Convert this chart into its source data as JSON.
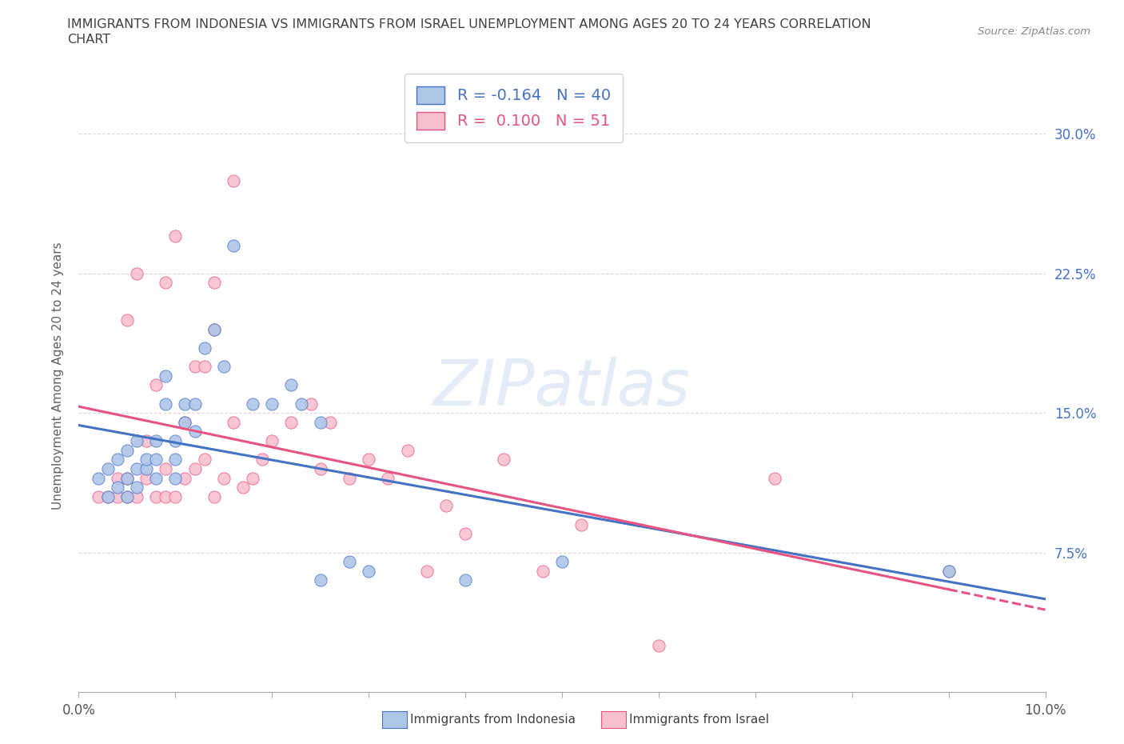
{
  "title_line1": "IMMIGRANTS FROM INDONESIA VS IMMIGRANTS FROM ISRAEL UNEMPLOYMENT AMONG AGES 20 TO 24 YEARS CORRELATION",
  "title_line2": "CHART",
  "source_text": "Source: ZipAtlas.com",
  "ylabel": "Unemployment Among Ages 20 to 24 years",
  "xlim": [
    0.0,
    0.1
  ],
  "ylim": [
    0.0,
    0.34
  ],
  "xtick_labels": [
    "0.0%",
    "",
    "",
    "",
    "",
    "",
    "",
    "",
    "",
    "",
    "10.0%"
  ],
  "xtick_vals": [
    0.0,
    0.01,
    0.02,
    0.03,
    0.04,
    0.05,
    0.06,
    0.07,
    0.08,
    0.09,
    0.1
  ],
  "ytick_labels": [
    "7.5%",
    "15.0%",
    "22.5%",
    "30.0%"
  ],
  "ytick_vals": [
    0.075,
    0.15,
    0.225,
    0.3
  ],
  "legend_labels": [
    "Immigrants from Indonesia",
    "Immigrants from Israel"
  ],
  "indonesia_color": "#aec6e8",
  "israel_color": "#f9c0d0",
  "indonesia_edge_color": "#4472c4",
  "israel_edge_color": "#e75480",
  "indonesia_line_color": "#4472c4",
  "israel_line_color": "#e75480",
  "R_indonesia": -0.164,
  "N_indonesia": 40,
  "R_israel": 0.1,
  "N_israel": 51,
  "indonesia_x": [
    0.002,
    0.003,
    0.003,
    0.004,
    0.004,
    0.005,
    0.005,
    0.005,
    0.006,
    0.006,
    0.006,
    0.007,
    0.007,
    0.008,
    0.008,
    0.008,
    0.009,
    0.009,
    0.01,
    0.01,
    0.01,
    0.011,
    0.011,
    0.012,
    0.012,
    0.013,
    0.014,
    0.015,
    0.016,
    0.018,
    0.02,
    0.022,
    0.023,
    0.025,
    0.025,
    0.028,
    0.03,
    0.04,
    0.05,
    0.09
  ],
  "indonesia_y": [
    0.115,
    0.105,
    0.12,
    0.11,
    0.125,
    0.105,
    0.115,
    0.13,
    0.11,
    0.12,
    0.135,
    0.12,
    0.125,
    0.115,
    0.125,
    0.135,
    0.155,
    0.17,
    0.115,
    0.125,
    0.135,
    0.145,
    0.155,
    0.14,
    0.155,
    0.185,
    0.195,
    0.175,
    0.24,
    0.155,
    0.155,
    0.165,
    0.155,
    0.06,
    0.145,
    0.07,
    0.065,
    0.06,
    0.07,
    0.065
  ],
  "israel_x": [
    0.002,
    0.003,
    0.004,
    0.004,
    0.005,
    0.005,
    0.005,
    0.006,
    0.006,
    0.007,
    0.007,
    0.008,
    0.008,
    0.009,
    0.009,
    0.009,
    0.01,
    0.01,
    0.011,
    0.011,
    0.012,
    0.012,
    0.013,
    0.013,
    0.014,
    0.014,
    0.014,
    0.015,
    0.016,
    0.016,
    0.017,
    0.018,
    0.019,
    0.02,
    0.022,
    0.024,
    0.025,
    0.026,
    0.028,
    0.03,
    0.032,
    0.034,
    0.036,
    0.038,
    0.04,
    0.044,
    0.048,
    0.052,
    0.06,
    0.072,
    0.09
  ],
  "israel_y": [
    0.105,
    0.105,
    0.105,
    0.115,
    0.105,
    0.115,
    0.2,
    0.105,
    0.225,
    0.115,
    0.135,
    0.105,
    0.165,
    0.105,
    0.12,
    0.22,
    0.105,
    0.245,
    0.115,
    0.145,
    0.12,
    0.175,
    0.125,
    0.175,
    0.105,
    0.195,
    0.22,
    0.115,
    0.145,
    0.275,
    0.11,
    0.115,
    0.125,
    0.135,
    0.145,
    0.155,
    0.12,
    0.145,
    0.115,
    0.125,
    0.115,
    0.13,
    0.065,
    0.1,
    0.085,
    0.125,
    0.065,
    0.09,
    0.025,
    0.115,
    0.065
  ],
  "watermark": "ZIPatlas",
  "background_color": "#ffffff",
  "grid_color": "#d8d8d8",
  "title_color": "#404040",
  "axis_label_color": "#606060",
  "tick_color_right": "#4472c4",
  "tick_color_left": "#e75480"
}
